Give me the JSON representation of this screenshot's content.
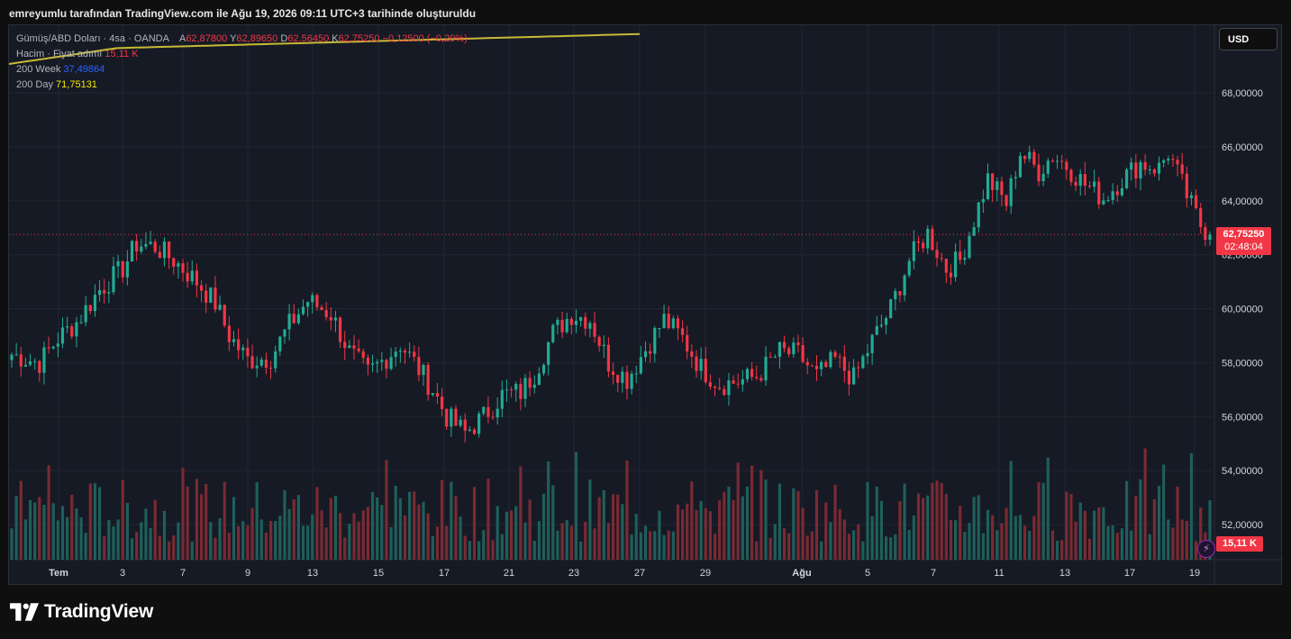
{
  "header": {
    "caption": "emreyumlu tarafından TradingView.com ile Ağu 19, 2026 09:11 UTC+3 tarihinde oluşturuldu"
  },
  "legend": {
    "symbol": "Gümüş/ABD Doları · 4sa · OANDA",
    "o_label": "A",
    "o_value": "62,87800",
    "h_label": "Y",
    "h_value": "62,89650",
    "l_label": "D",
    "l_value": "62,56450",
    "c_label": "K",
    "c_value": "62,75250",
    "change": "−0,12500 (−0,20%)",
    "volume_label": "Hacim · Fiyat adımı",
    "volume_value": "15,11 K",
    "ma200w_label": "200 Week",
    "ma200w_value": "37,49864",
    "ma200d_label": "200 Day",
    "ma200d_value": "71,75131"
  },
  "currency_button": "USD",
  "last_price": {
    "price": "62,75250",
    "countdown": "02:48:04"
  },
  "volume_badge": "15,11 K",
  "brand": {
    "name": "TradingView"
  },
  "colors": {
    "up": "#22ab94",
    "down": "#f23645",
    "up_volume": "#1e5f5a",
    "down_volume": "#7a2a33",
    "ma200d": "#c8b935",
    "grid": "#232632",
    "background": "#161a25"
  },
  "chart_data": {
    "type": "candlestick",
    "title": "Gümüş/ABD Doları · 4sa · OANDA",
    "x_ticks": [
      "Tem",
      "3",
      "7",
      "9",
      "13",
      "15",
      "17",
      "21",
      "23",
      "27",
      "29",
      "Ağu",
      "5",
      "7",
      "11",
      "13",
      "17",
      "19"
    ],
    "y_ticks": [
      "68,00000",
      "66,00000",
      "64,00000",
      "62,00000",
      "60,00000",
      "58,00000",
      "56,00000",
      "54,00000",
      "52,00000"
    ],
    "ylim": [
      51.2,
      69.3
    ],
    "last_close": 62.7525,
    "grid": true,
    "close_path": [
      [
        0,
        58.3
      ],
      [
        6,
        58.0
      ],
      [
        10,
        58.9
      ],
      [
        14,
        59.5
      ],
      [
        19,
        60.7
      ],
      [
        24,
        61.5
      ],
      [
        27,
        62.4
      ],
      [
        31,
        62.3
      ],
      [
        35,
        61.8
      ],
      [
        40,
        61.0
      ],
      [
        44,
        60.2
      ],
      [
        47,
        59.0
      ],
      [
        51,
        58.1
      ],
      [
        56,
        58.2
      ],
      [
        60,
        59.4
      ],
      [
        64,
        60.3
      ],
      [
        69,
        59.8
      ],
      [
        73,
        58.4
      ],
      [
        77,
        57.6
      ],
      [
        81,
        58.2
      ],
      [
        84,
        58.7
      ],
      [
        87,
        58.0
      ],
      [
        91,
        57.0
      ],
      [
        94,
        56.0
      ],
      [
        98,
        55.4
      ],
      [
        102,
        56.0
      ],
      [
        106,
        56.8
      ],
      [
        110,
        56.9
      ],
      [
        113,
        57.6
      ],
      [
        117,
        59.1
      ],
      [
        121,
        59.8
      ],
      [
        125,
        59.6
      ],
      [
        129,
        58.0
      ],
      [
        133,
        57.4
      ],
      [
        137,
        58.5
      ],
      [
        141,
        59.6
      ],
      [
        145,
        58.9
      ],
      [
        149,
        57.8
      ],
      [
        153,
        57.2
      ],
      [
        157,
        57.3
      ],
      [
        161,
        57.5
      ],
      [
        166,
        58.4
      ],
      [
        170,
        58.3
      ],
      [
        174,
        57.5
      ],
      [
        178,
        58.1
      ],
      [
        182,
        57.4
      ],
      [
        186,
        58.8
      ],
      [
        190,
        60.0
      ],
      [
        194,
        61.8
      ],
      [
        198,
        62.8
      ],
      [
        202,
        61.5
      ],
      [
        205,
        61.8
      ],
      [
        208,
        63.3
      ],
      [
        211,
        64.8
      ],
      [
        215,
        63.9
      ],
      [
        218,
        65.8
      ],
      [
        222,
        65.1
      ],
      [
        225,
        65.7
      ],
      [
        228,
        65.3
      ],
      [
        232,
        64.6
      ],
      [
        236,
        64.1
      ],
      [
        240,
        64.8
      ],
      [
        244,
        65.4
      ],
      [
        248,
        65.2
      ],
      [
        250,
        65.8
      ],
      [
        252,
        65.0
      ],
      [
        255,
        63.8
      ],
      [
        257,
        63.1
      ],
      [
        259,
        62.75
      ]
    ],
    "volume": {
      "max_label": "15,11 K",
      "last": 15.11
    }
  }
}
